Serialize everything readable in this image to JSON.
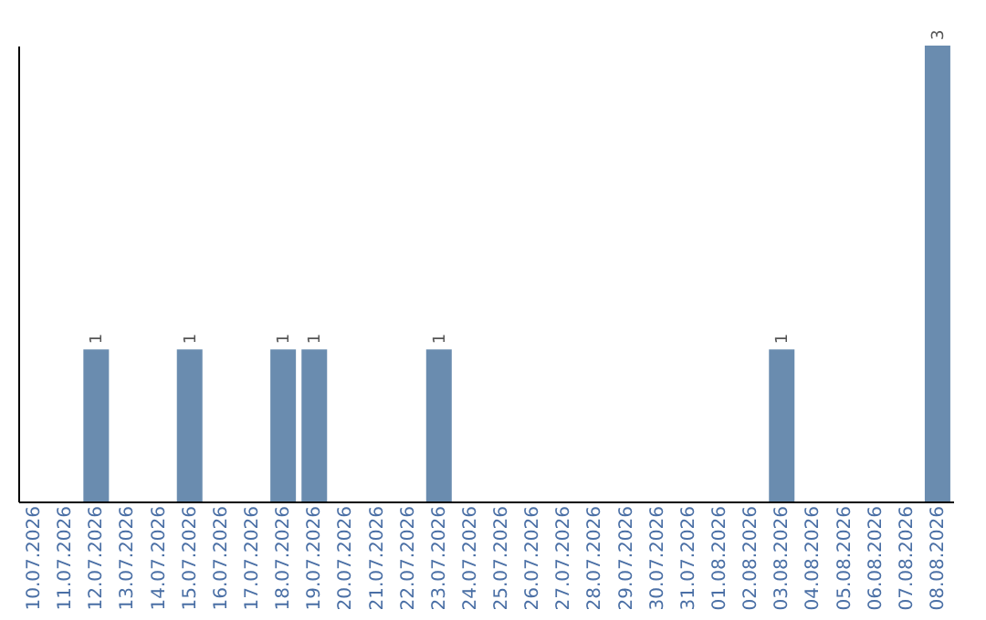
{
  "chart_data": {
    "type": "bar",
    "categories": [
      "10.07.2026",
      "11.07.2026",
      "12.07.2026",
      "13.07.2026",
      "14.07.2026",
      "15.07.2026",
      "16.07.2026",
      "17.07.2026",
      "18.07.2026",
      "19.07.2026",
      "20.07.2026",
      "21.07.2026",
      "22.07.2026",
      "23.07.2026",
      "24.07.2026",
      "25.07.2026",
      "26.07.2026",
      "27.07.2026",
      "28.07.2026",
      "29.07.2026",
      "30.07.2026",
      "31.07.2026",
      "01.08.2026",
      "02.08.2026",
      "03.08.2026",
      "04.08.2026",
      "05.08.2026",
      "06.08.2026",
      "07.08.2026",
      "08.08.2026"
    ],
    "values": [
      0,
      0,
      1,
      0,
      0,
      1,
      0,
      0,
      1,
      1,
      0,
      0,
      0,
      1,
      0,
      0,
      0,
      0,
      0,
      0,
      0,
      0,
      0,
      0,
      1,
      0,
      0,
      0,
      0,
      3
    ],
    "value_labels": [
      null,
      null,
      "1",
      null,
      null,
      "1",
      null,
      null,
      "1",
      "1",
      null,
      null,
      null,
      "1",
      null,
      null,
      null,
      null,
      null,
      null,
      null,
      null,
      null,
      null,
      "1",
      null,
      null,
      null,
      null,
      "3"
    ],
    "color": "#6a8caf",
    "grid": false
  }
}
